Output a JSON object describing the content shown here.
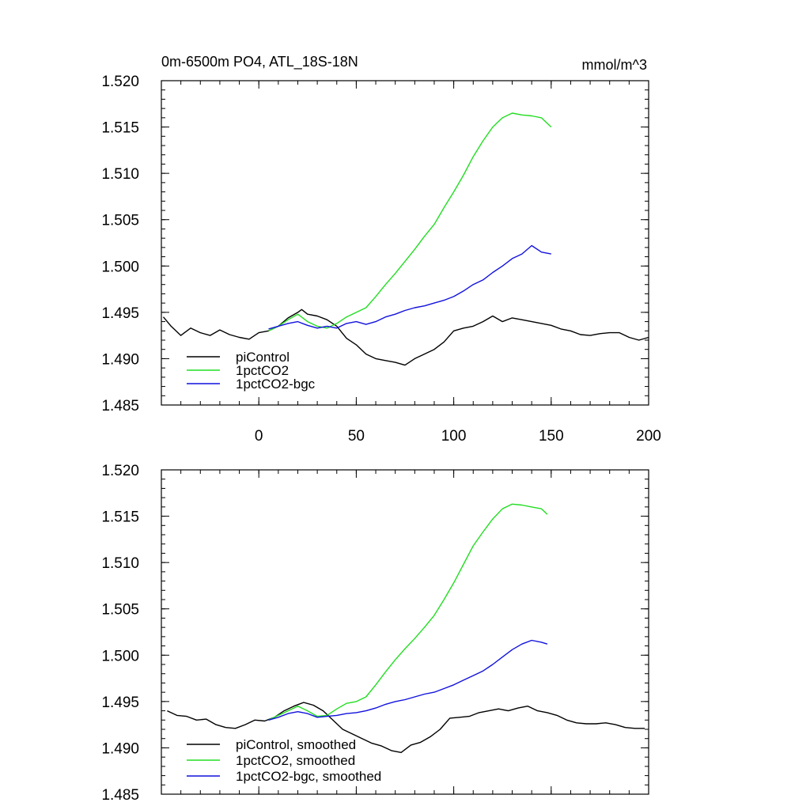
{
  "chart_data": [
    {
      "type": "line",
      "title_left": "0m-6500m PO4, ATL_18S-18N",
      "title_right": "mmol/m^3",
      "xlim": [
        -50,
        200
      ],
      "ylim": [
        1.485,
        1.52
      ],
      "x_ticks": [
        0,
        50,
        100,
        150,
        200
      ],
      "y_ticks": [
        "1.485",
        "1.490",
        "1.495",
        "1.500",
        "1.505",
        "1.510",
        "1.515",
        "1.520"
      ],
      "show_x_tick_labels": true,
      "legend": {
        "placement": "bottom-left"
      },
      "series": [
        {
          "name": "piControl",
          "color": "#000000",
          "x": [
            -49,
            -45,
            -40,
            -35,
            -30,
            -25,
            -20,
            -15,
            -10,
            -5,
            0,
            5,
            10,
            15,
            20,
            22,
            25,
            30,
            35,
            40,
            45,
            50,
            55,
            60,
            65,
            70,
            75,
            80,
            85,
            90,
            95,
            100,
            105,
            110,
            115,
            120,
            125,
            130,
            135,
            140,
            145,
            150,
            155,
            160,
            165,
            170,
            175,
            180,
            185,
            190,
            195,
            200
          ],
          "y": [
            1.4945,
            1.4935,
            1.4925,
            1.4933,
            1.4928,
            1.4925,
            1.4931,
            1.4926,
            1.4923,
            1.4921,
            1.4928,
            1.493,
            1.4935,
            1.4944,
            1.495,
            1.4953,
            1.4948,
            1.4946,
            1.4942,
            1.4935,
            1.4922,
            1.4915,
            1.4905,
            1.49,
            1.4898,
            1.4896,
            1.4893,
            1.49,
            1.4905,
            1.491,
            1.4918,
            1.493,
            1.4933,
            1.4935,
            1.494,
            1.4946,
            1.494,
            1.4944,
            1.4942,
            1.494,
            1.4938,
            1.4936,
            1.4932,
            1.493,
            1.4926,
            1.4925,
            1.4927,
            1.4928,
            1.4928,
            1.4923,
            1.492,
            1.4923
          ]
        },
        {
          "name": "1pctCO2",
          "color": "#22dd22",
          "x": [
            5,
            10,
            15,
            20,
            25,
            30,
            35,
            40,
            45,
            50,
            55,
            60,
            65,
            70,
            75,
            80,
            85,
            90,
            95,
            100,
            105,
            110,
            115,
            120,
            125,
            130,
            135,
            140,
            145,
            150
          ],
          "y": [
            1.493,
            1.4935,
            1.4942,
            1.4948,
            1.494,
            1.4935,
            1.4933,
            1.4938,
            1.4945,
            1.495,
            1.4955,
            1.4967,
            1.498,
            1.4992,
            1.5005,
            1.5018,
            1.5032,
            1.5045,
            1.5063,
            1.508,
            1.5098,
            1.5118,
            1.5135,
            1.515,
            1.516,
            1.5165,
            1.5163,
            1.5162,
            1.516,
            1.515
          ]
        },
        {
          "name": "1pctCO2-bgc",
          "color": "#1111dd",
          "x": [
            5,
            10,
            15,
            20,
            25,
            30,
            35,
            40,
            45,
            50,
            55,
            60,
            65,
            70,
            75,
            80,
            85,
            90,
            95,
            100,
            105,
            110,
            115,
            120,
            125,
            130,
            135,
            140,
            145,
            150
          ],
          "y": [
            1.4932,
            1.4935,
            1.4938,
            1.494,
            1.4936,
            1.4933,
            1.4935,
            1.4933,
            1.4938,
            1.494,
            1.4937,
            1.494,
            1.4945,
            1.4948,
            1.4952,
            1.4955,
            1.4957,
            1.496,
            1.4963,
            1.4967,
            1.4973,
            1.498,
            1.4985,
            1.4993,
            1.5,
            1.5008,
            1.5013,
            1.5022,
            1.5015,
            1.5013
          ]
        }
      ]
    },
    {
      "type": "line",
      "xlim": [
        -50,
        200
      ],
      "ylim": [
        1.485,
        1.52
      ],
      "x_ticks": [
        0,
        50,
        100,
        150,
        200
      ],
      "y_ticks": [
        "1.485",
        "1.490",
        "1.495",
        "1.500",
        "1.505",
        "1.510",
        "1.515",
        "1.520"
      ],
      "show_x_tick_labels": false,
      "legend": {
        "placement": "bottom-left"
      },
      "series": [
        {
          "name": "piControl, smoothed",
          "color": "#000000",
          "x": [
            -47,
            -42,
            -37,
            -32,
            -27,
            -22,
            -17,
            -12,
            -7,
            -2,
            3,
            8,
            13,
            18,
            23,
            28,
            33,
            38,
            43,
            48,
            53,
            58,
            63,
            68,
            73,
            78,
            83,
            88,
            93,
            98,
            103,
            108,
            113,
            118,
            123,
            128,
            133,
            138,
            143,
            148,
            153,
            158,
            163,
            168,
            173,
            178,
            183,
            188,
            193,
            198
          ],
          "y": [
            1.494,
            1.4935,
            1.4934,
            1.493,
            1.4931,
            1.4925,
            1.4922,
            1.4921,
            1.4925,
            1.493,
            1.4929,
            1.4933,
            1.494,
            1.4945,
            1.4949,
            1.4946,
            1.494,
            1.493,
            1.492,
            1.4915,
            1.491,
            1.4905,
            1.4902,
            1.4897,
            1.4895,
            1.4903,
            1.4906,
            1.4912,
            1.492,
            1.4932,
            1.4933,
            1.4934,
            1.4938,
            1.494,
            1.4942,
            1.494,
            1.4943,
            1.4945,
            1.494,
            1.4938,
            1.4935,
            1.493,
            1.4927,
            1.4926,
            1.4926,
            1.4927,
            1.4925,
            1.4922,
            1.4921,
            1.4921
          ]
        },
        {
          "name": "1pctCO2, smoothed",
          "color": "#22dd22",
          "x": [
            5,
            10,
            15,
            20,
            25,
            30,
            35,
            40,
            45,
            50,
            55,
            60,
            65,
            70,
            75,
            80,
            85,
            90,
            95,
            100,
            105,
            110,
            115,
            120,
            125,
            130,
            135,
            140,
            145,
            148
          ],
          "y": [
            1.493,
            1.4935,
            1.494,
            1.4945,
            1.494,
            1.4934,
            1.4935,
            1.4942,
            1.4948,
            1.495,
            1.4955,
            1.4968,
            1.4982,
            1.4995,
            1.5007,
            1.5018,
            1.503,
            1.5043,
            1.506,
            1.5078,
            1.5098,
            1.5118,
            1.5133,
            1.5147,
            1.5158,
            1.5163,
            1.5162,
            1.516,
            1.5158,
            1.5152
          ]
        },
        {
          "name": "1pctCO2-bgc, smoothed",
          "color": "#1111dd",
          "x": [
            5,
            10,
            15,
            20,
            25,
            30,
            35,
            40,
            45,
            50,
            55,
            60,
            65,
            70,
            75,
            80,
            85,
            90,
            95,
            100,
            105,
            110,
            115,
            120,
            125,
            130,
            135,
            140,
            145,
            148
          ],
          "y": [
            1.493,
            1.4933,
            1.4937,
            1.4939,
            1.4937,
            1.4933,
            1.4934,
            1.4935,
            1.4937,
            1.4938,
            1.494,
            1.4943,
            1.4947,
            1.495,
            1.4952,
            1.4955,
            1.4958,
            1.496,
            1.4964,
            1.4968,
            1.4973,
            1.4978,
            1.4983,
            1.499,
            1.4998,
            1.5006,
            1.5012,
            1.5016,
            1.5014,
            1.5012
          ]
        }
      ]
    }
  ]
}
